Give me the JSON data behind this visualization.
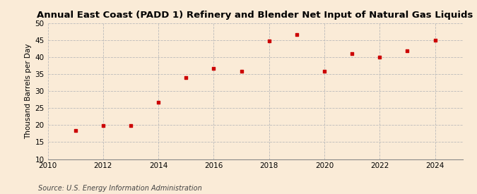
{
  "title": "Annual East Coast (PADD 1) Refinery and Blender Net Input of Natural Gas Liquids",
  "ylabel": "Thousand Barrels per Day",
  "source": "Source: U.S. Energy Information Administration",
  "background_color": "#faebd7",
  "marker_color": "#cc0000",
  "grid_color": "#bbbbbb",
  "x_data": [
    2011,
    2012,
    2013,
    2014,
    2015,
    2016,
    2017,
    2018,
    2019,
    2020,
    2021,
    2022,
    2023,
    2024
  ],
  "y_data": [
    18.5,
    19.8,
    19.8,
    26.7,
    33.9,
    36.8,
    35.9,
    44.9,
    46.7,
    35.9,
    41.1,
    40.1,
    42.0,
    45.0
  ],
  "xlim": [
    2010,
    2025
  ],
  "ylim": [
    10,
    50
  ],
  "xticks": [
    2010,
    2012,
    2014,
    2016,
    2018,
    2020,
    2022,
    2024
  ],
  "yticks": [
    10,
    15,
    20,
    25,
    30,
    35,
    40,
    45,
    50
  ],
  "title_fontsize": 9.5,
  "label_fontsize": 7.5,
  "tick_fontsize": 7.5,
  "source_fontsize": 7
}
